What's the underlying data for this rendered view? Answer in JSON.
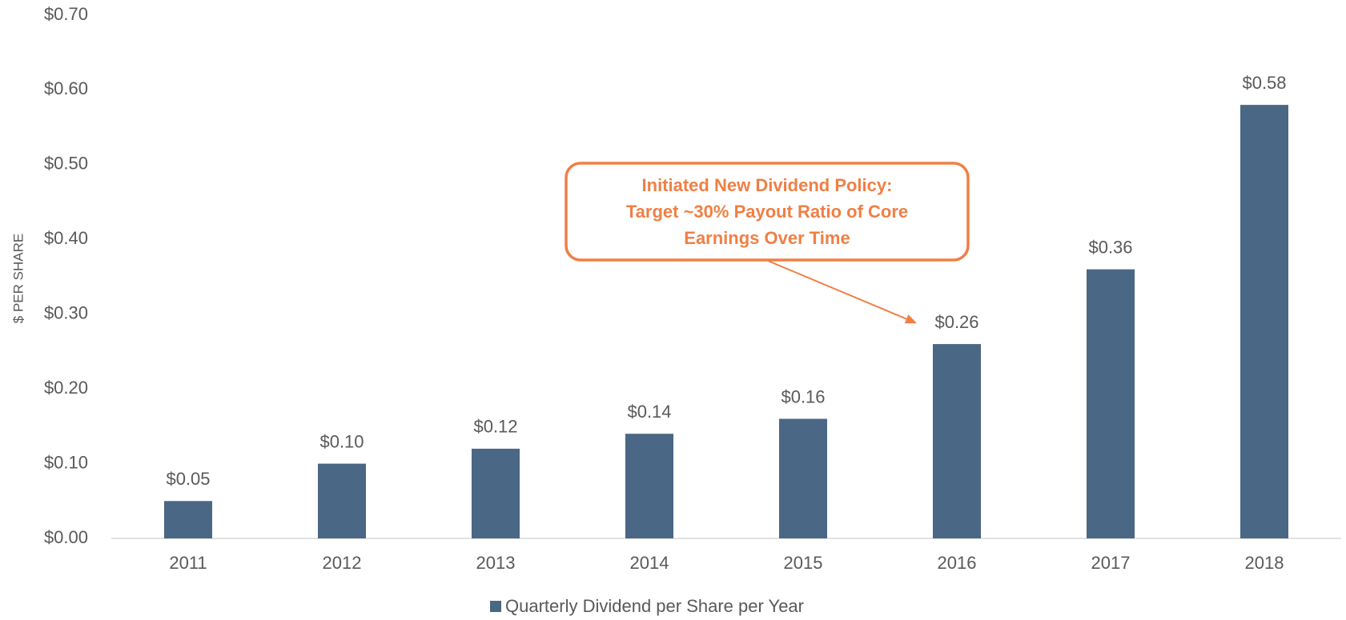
{
  "chart_data": {
    "type": "bar",
    "y_label": "$ PER SHARE",
    "categories": [
      "2011",
      "2012",
      "2013",
      "2014",
      "2015",
      "2016",
      "2017",
      "2018"
    ],
    "series": [
      {
        "name": "Quarterly Dividend per Share per Year",
        "color": "#4a6785",
        "values": [
          0.05,
          0.1,
          0.12,
          0.14,
          0.16,
          0.26,
          0.36,
          0.58
        ],
        "value_labels": [
          "$0.05",
          "$0.10",
          "$0.12",
          "$0.14",
          "$0.16",
          "$0.26",
          "$0.36",
          "$0.58"
        ]
      }
    ],
    "ylim": [
      0,
      0.7
    ],
    "yticks": [
      {
        "value": 0,
        "label": "$0.00"
      },
      {
        "value": 0.1,
        "label": "$0.10"
      },
      {
        "value": 0.2,
        "label": "$0.20"
      },
      {
        "value": 0.3,
        "label": "$0.30"
      },
      {
        "value": 0.4,
        "label": "$0.40"
      },
      {
        "value": 0.5,
        "label": "$0.50"
      },
      {
        "value": 0.6,
        "label": "$0.60"
      },
      {
        "value": 0.7,
        "label": "$0.70"
      }
    ],
    "grid": false,
    "legend": "bottom",
    "annotation": {
      "lines": [
        "Initiated New Dividend Policy:",
        "Target ~30% Payout Ratio of Core",
        "Earnings Over Time"
      ],
      "color": "#f07f45",
      "target": 5
    }
  }
}
